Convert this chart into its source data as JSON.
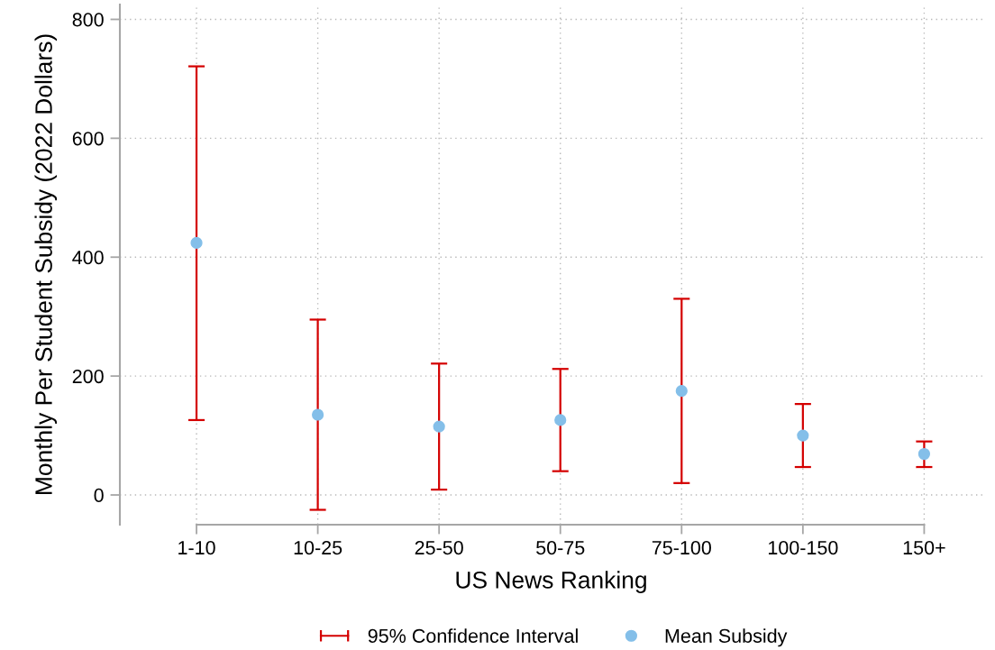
{
  "chart_data": {
    "type": "scatter",
    "xlabel": "US News Ranking",
    "ylabel": "Monthly Per Student Subsidy (2022 Dollars)",
    "categories": [
      "1-10",
      "10-25",
      "25-50",
      "50-75",
      "75-100",
      "100-150",
      "150+"
    ],
    "series": [
      {
        "name": "Mean Subsidy",
        "color": "#84bfe9",
        "marker": "circle",
        "values": [
          424,
          135,
          115,
          126,
          175,
          100,
          69
        ],
        "errors": [
          [
            126,
            721
          ],
          [
            -25,
            295
          ],
          [
            9,
            221
          ],
          [
            40,
            212
          ],
          [
            20,
            330
          ],
          [
            47,
            153
          ],
          [
            47,
            90
          ]
        ]
      }
    ],
    "annotations": [
      "95% Confidence Interval"
    ],
    "ylim": [
      -50,
      825
    ],
    "yticks": [
      0,
      200,
      400,
      600,
      800
    ],
    "grid": true,
    "legend": "bottom"
  }
}
